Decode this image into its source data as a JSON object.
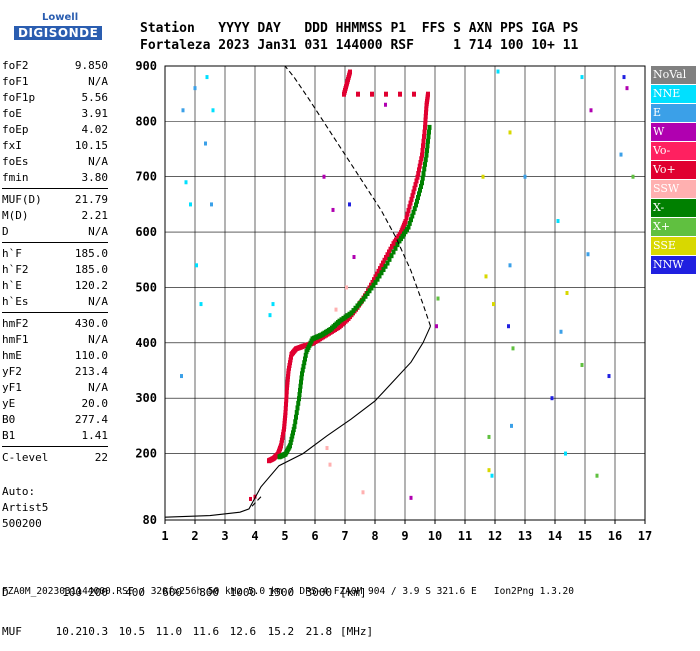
{
  "logo": {
    "line1": "Lowell",
    "line2": "DIGISONDE"
  },
  "header": {
    "labels": [
      "Station",
      "YYYY",
      "DAY",
      "DDD",
      "HHMMSS",
      "P1",
      "FFS",
      "S",
      "AXN",
      "PPS",
      "IGA",
      "PS"
    ],
    "line1": "Station   YYYY DAY   DDD HHMMSS P1  FFS S AXN PPS IGA PS",
    "line2": "Fortaleza 2023 Jan31 031 144000 RSF     1 714 100 10+ 11"
  },
  "params": {
    "group1": [
      {
        "k": "foF2",
        "v": "9.850"
      },
      {
        "k": "foF1",
        "v": "N/A"
      },
      {
        "k": "foF1p",
        "v": "5.56"
      },
      {
        "k": "foE",
        "v": "3.91"
      },
      {
        "k": "foEp",
        "v": "4.02"
      },
      {
        "k": "fxI",
        "v": "10.15"
      },
      {
        "k": "foEs",
        "v": "N/A"
      },
      {
        "k": "fmin",
        "v": "3.80"
      }
    ],
    "group2": [
      {
        "k": "MUF(D)",
        "v": "21.79"
      },
      {
        "k": "M(D)",
        "v": "2.21"
      },
      {
        "k": "D",
        "v": "N/A"
      }
    ],
    "group3": [
      {
        "k": "h`F",
        "v": "185.0"
      },
      {
        "k": "h`F2",
        "v": "185.0"
      },
      {
        "k": "h`E",
        "v": "120.2"
      },
      {
        "k": "h`Es",
        "v": "N/A"
      }
    ],
    "group4": [
      {
        "k": "hmF2",
        "v": "430.0"
      },
      {
        "k": "hmF1",
        "v": "N/A"
      },
      {
        "k": "hmE",
        "v": "110.0"
      },
      {
        "k": "yF2",
        "v": "213.4"
      },
      {
        "k": "yF1",
        "v": "N/A"
      },
      {
        "k": "yE",
        "v": "20.0"
      },
      {
        "k": "B0",
        "v": "277.4"
      },
      {
        "k": "B1",
        "v": "1.41"
      }
    ],
    "group5": [
      {
        "k": "C-level",
        "v": "22"
      }
    ]
  },
  "auto": {
    "line1": "Auto:",
    "line2": "Artist5",
    "line3": "500200"
  },
  "legend": [
    {
      "label": "NoVal",
      "color": "#808080"
    },
    {
      "label": "NNE",
      "color": "#00e0ff"
    },
    {
      "label": "E",
      "color": "#3ba0e8"
    },
    {
      "label": "W",
      "color": "#b000b0"
    },
    {
      "label": "Vo-",
      "color": "#ff2060"
    },
    {
      "label": "Vo+",
      "color": "#e00030"
    },
    {
      "label": "SSW",
      "color": "#ffb0b0"
    },
    {
      "label": "X-",
      "color": "#008000"
    },
    {
      "label": "X+",
      "color": "#60c040"
    },
    {
      "label": "SSE",
      "color": "#d8d800"
    },
    {
      "label": "NNW",
      "color": "#2020e0"
    }
  ],
  "footer": {
    "d_label": "D",
    "d_values": [
      "100",
      "200",
      "400",
      "600",
      "800",
      "1000",
      "1500",
      "3000"
    ],
    "d_unit": "[km]",
    "muf_label": "MUF",
    "muf_values": [
      "10.2",
      "10.3",
      "10.5",
      "11.0",
      "11.6",
      "12.6",
      "15.2",
      "21.8"
    ],
    "muf_unit": "[MHz]",
    "info": "FZA0M_2023031144000.RSF / 320fx256h 50 kHz 5.0 km / DPS-4 FZA0M 904 / 3.9 S 321.6 E   Ion2Png 1.3.20"
  },
  "chart_data": {
    "type": "scatter",
    "xlim": [
      1,
      17
    ],
    "ylim": [
      80,
      900
    ],
    "x_ticks": [
      1,
      2,
      3,
      4,
      5,
      6,
      7,
      8,
      9,
      10,
      11,
      12,
      13,
      14,
      15,
      16,
      17
    ],
    "y_ticks": [
      200,
      300,
      400,
      500,
      600,
      700,
      800,
      900
    ],
    "y_ticks_labeled": [
      80,
      200,
      300,
      400,
      500,
      600,
      700,
      800,
      900
    ],
    "grid": true,
    "legend_position": "right",
    "series": [
      {
        "name": "Vo-",
        "color": "#e00030",
        "points": [
          [
            4.45,
            188
          ],
          [
            4.6,
            192
          ],
          [
            4.75,
            200
          ],
          [
            4.85,
            215
          ],
          [
            4.95,
            245
          ],
          [
            5.0,
            275
          ],
          [
            5.05,
            320
          ],
          [
            5.1,
            350
          ],
          [
            5.2,
            380
          ],
          [
            5.35,
            390
          ],
          [
            5.6,
            395
          ],
          [
            5.9,
            400
          ],
          [
            6.2,
            410
          ],
          [
            6.5,
            420
          ],
          [
            6.8,
            430
          ],
          [
            7.1,
            445
          ],
          [
            7.4,
            465
          ],
          [
            7.7,
            490
          ],
          [
            8.0,
            520
          ],
          [
            8.3,
            550
          ],
          [
            8.6,
            580
          ],
          [
            8.85,
            600
          ],
          [
            9.0,
            620
          ],
          [
            9.2,
            660
          ],
          [
            9.4,
            700
          ],
          [
            9.55,
            740
          ],
          [
            9.65,
            790
          ],
          [
            9.7,
            830
          ],
          [
            9.75,
            850
          ],
          [
            6.95,
            850
          ],
          [
            7.05,
            870
          ],
          [
            7.15,
            890
          ]
        ]
      },
      {
        "name": "X-",
        "color": "#008000",
        "points": [
          [
            4.8,
            195
          ],
          [
            5.0,
            200
          ],
          [
            5.15,
            215
          ],
          [
            5.3,
            250
          ],
          [
            5.45,
            300
          ],
          [
            5.55,
            345
          ],
          [
            5.7,
            385
          ],
          [
            5.9,
            408
          ],
          [
            6.2,
            415
          ],
          [
            6.5,
            425
          ],
          [
            6.8,
            440
          ],
          [
            7.2,
            455
          ],
          [
            7.6,
            480
          ],
          [
            8.0,
            510
          ],
          [
            8.4,
            545
          ],
          [
            8.8,
            585
          ],
          [
            9.1,
            610
          ],
          [
            9.35,
            650
          ],
          [
            9.55,
            690
          ],
          [
            9.7,
            740
          ],
          [
            9.8,
            790
          ]
        ]
      },
      {
        "name": "E-layer trace",
        "color": "#e00030",
        "points": [
          [
            3.85,
            118
          ],
          [
            4.0,
            122
          ]
        ]
      },
      {
        "name": "NNE",
        "color": "#00e0ff",
        "points": [
          [
            1.7,
            690
          ],
          [
            1.85,
            650
          ],
          [
            2.05,
            540
          ],
          [
            2.2,
            470
          ],
          [
            2.4,
            880
          ],
          [
            2.6,
            820
          ],
          [
            4.6,
            470
          ],
          [
            4.5,
            450
          ],
          [
            11.9,
            160
          ],
          [
            12.1,
            890
          ],
          [
            14.1,
            620
          ],
          [
            14.35,
            200
          ],
          [
            14.9,
            880
          ]
        ]
      },
      {
        "name": "E",
        "color": "#3ba0e8",
        "points": [
          [
            1.6,
            820
          ],
          [
            1.55,
            340
          ],
          [
            2.0,
            860
          ],
          [
            2.35,
            760
          ],
          [
            2.55,
            650
          ],
          [
            12.55,
            250
          ],
          [
            12.5,
            540
          ],
          [
            13.0,
            700
          ],
          [
            14.2,
            420
          ],
          [
            15.1,
            560
          ],
          [
            16.2,
            740
          ]
        ]
      },
      {
        "name": "W",
        "color": "#b000b0",
        "points": [
          [
            6.3,
            700
          ],
          [
            6.6,
            640
          ],
          [
            7.3,
            555
          ],
          [
            8.35,
            830
          ],
          [
            9.2,
            120
          ],
          [
            10.05,
            430
          ],
          [
            15.2,
            820
          ],
          [
            16.4,
            860
          ]
        ]
      },
      {
        "name": "SSW",
        "color": "#ffb0b0",
        "points": [
          [
            6.4,
            210
          ],
          [
            6.5,
            180
          ],
          [
            6.7,
            460
          ],
          [
            7.05,
            500
          ],
          [
            7.6,
            130
          ]
        ]
      },
      {
        "name": "X+",
        "color": "#60c040",
        "points": [
          [
            10.1,
            480
          ],
          [
            11.8,
            230
          ],
          [
            12.6,
            390
          ],
          [
            14.9,
            360
          ],
          [
            15.4,
            160
          ],
          [
            16.6,
            700
          ]
        ]
      },
      {
        "name": "SSE",
        "color": "#d8d800",
        "points": [
          [
            11.6,
            700
          ],
          [
            11.7,
            520
          ],
          [
            11.95,
            470
          ],
          [
            11.8,
            170
          ],
          [
            12.5,
            780
          ],
          [
            14.4,
            490
          ]
        ]
      },
      {
        "name": "NNW",
        "color": "#2020e0",
        "points": [
          [
            7.15,
            650
          ],
          [
            12.45,
            430
          ],
          [
            13.9,
            300
          ],
          [
            15.8,
            340
          ],
          [
            16.3,
            880
          ]
        ]
      }
    ],
    "curves": [
      {
        "name": "profile",
        "style": "solid",
        "points": [
          [
            1.0,
            85
          ],
          [
            2.5,
            88
          ],
          [
            3.5,
            94
          ],
          [
            3.8,
            100
          ],
          [
            4.2,
            140
          ],
          [
            4.8,
            178
          ],
          [
            5.6,
            200
          ],
          [
            6.4,
            232
          ],
          [
            7.2,
            262
          ],
          [
            8.0,
            295
          ],
          [
            8.6,
            330
          ],
          [
            9.2,
            365
          ],
          [
            9.6,
            400
          ],
          [
            9.85,
            430
          ]
        ]
      },
      {
        "name": "profile-topside",
        "style": "dashed",
        "points": [
          [
            9.85,
            430
          ],
          [
            9.6,
            470
          ],
          [
            9.2,
            530
          ],
          [
            8.7,
            590
          ],
          [
            8.2,
            640
          ],
          [
            7.6,
            690
          ],
          [
            7.0,
            740
          ],
          [
            6.4,
            790
          ],
          [
            5.8,
            840
          ],
          [
            5.3,
            880
          ],
          [
            5.0,
            900
          ]
        ]
      },
      {
        "name": "profile-e",
        "style": "dashed",
        "points": [
          [
            3.9,
            105
          ],
          [
            4.2,
            122
          ]
        ]
      }
    ]
  }
}
